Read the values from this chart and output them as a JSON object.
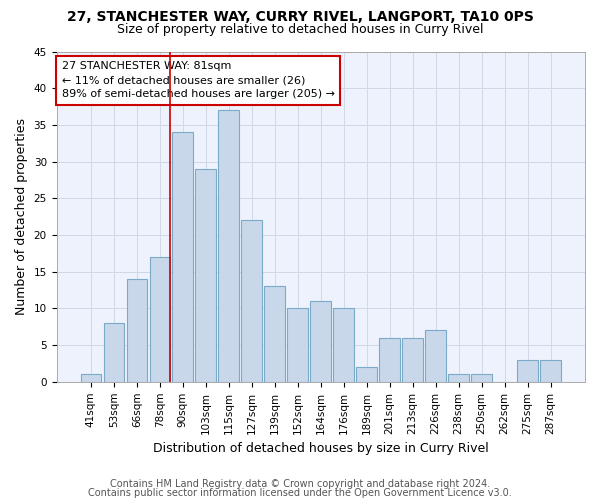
{
  "title": "27, STANCHESTER WAY, CURRY RIVEL, LANGPORT, TA10 0PS",
  "subtitle": "Size of property relative to detached houses in Curry Rivel",
  "xlabel": "Distribution of detached houses by size in Curry Rivel",
  "ylabel": "Number of detached properties",
  "categories": [
    "41sqm",
    "53sqm",
    "66sqm",
    "78sqm",
    "90sqm",
    "103sqm",
    "115sqm",
    "127sqm",
    "139sqm",
    "152sqm",
    "164sqm",
    "176sqm",
    "189sqm",
    "201sqm",
    "213sqm",
    "226sqm",
    "238sqm",
    "250sqm",
    "262sqm",
    "275sqm",
    "287sqm"
  ],
  "values": [
    1,
    8,
    14,
    17,
    34,
    29,
    37,
    22,
    13,
    10,
    11,
    10,
    2,
    6,
    6,
    7,
    1,
    1,
    0,
    3,
    3
  ],
  "bar_color": "#c8d8ea",
  "bar_edge_color": "#7aaac8",
  "vline_color": "#cc0000",
  "annotation_text": "27 STANCHESTER WAY: 81sqm\n← 11% of detached houses are smaller (26)\n89% of semi-detached houses are larger (205) →",
  "annotation_box_color": "white",
  "annotation_box_edge_color": "#cc0000",
  "ylim": [
    0,
    45
  ],
  "yticks": [
    0,
    5,
    10,
    15,
    20,
    25,
    30,
    35,
    40,
    45
  ],
  "footer1": "Contains HM Land Registry data © Crown copyright and database right 2024.",
  "footer2": "Contains public sector information licensed under the Open Government Licence v3.0.",
  "bg_color": "#eef2fc",
  "grid_color": "#d0d8e8",
  "title_fontsize": 10,
  "subtitle_fontsize": 9,
  "xlabel_fontsize": 9,
  "ylabel_fontsize": 9,
  "tick_fontsize": 7.5,
  "annotation_fontsize": 8,
  "footer_fontsize": 7
}
